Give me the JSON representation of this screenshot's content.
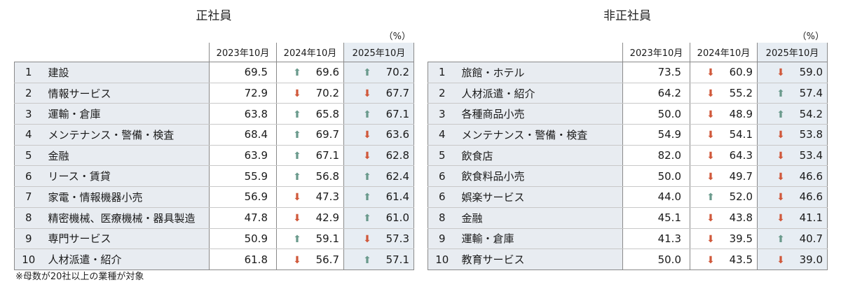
{
  "unit": "（%）",
  "headers": [
    "2023年10月",
    "2024年10月",
    "2025年10月"
  ],
  "note": "※母数が20社以上の業種が対象",
  "panels": [
    {
      "title": "正社員",
      "rows": [
        {
          "rank": "1",
          "name": "建設",
          "v2023": "69.5",
          "v2024": "69.6",
          "d2024": "up",
          "v2025": "70.2",
          "d2025": "up"
        },
        {
          "rank": "2",
          "name": "情報サービス",
          "v2023": "72.9",
          "v2024": "70.2",
          "d2024": "down",
          "v2025": "67.7",
          "d2025": "down"
        },
        {
          "rank": "3",
          "name": "運輸・倉庫",
          "v2023": "63.8",
          "v2024": "65.8",
          "d2024": "up",
          "v2025": "67.1",
          "d2025": "up"
        },
        {
          "rank": "4",
          "name": "メンテナンス・警備・検査",
          "v2023": "68.4",
          "v2024": "69.7",
          "d2024": "up",
          "v2025": "63.6",
          "d2025": "down"
        },
        {
          "rank": "5",
          "name": "金融",
          "v2023": "63.9",
          "v2024": "67.1",
          "d2024": "up",
          "v2025": "62.8",
          "d2025": "down"
        },
        {
          "rank": "6",
          "name": "リース・賃貸",
          "v2023": "55.9",
          "v2024": "56.8",
          "d2024": "up",
          "v2025": "62.4",
          "d2025": "up"
        },
        {
          "rank": "7",
          "name": "家電・情報機器小売",
          "v2023": "56.9",
          "v2024": "47.3",
          "d2024": "down",
          "v2025": "61.4",
          "d2025": "up"
        },
        {
          "rank": "8",
          "name": "精密機械、医療機械・器具製造",
          "v2023": "47.8",
          "v2024": "42.9",
          "d2024": "down",
          "v2025": "61.0",
          "d2025": "up"
        },
        {
          "rank": "9",
          "name": "専門サービス",
          "v2023": "50.9",
          "v2024": "59.1",
          "d2024": "up",
          "v2025": "57.3",
          "d2025": "down"
        },
        {
          "rank": "10",
          "name": "人材派遣・紹介",
          "v2023": "61.8",
          "v2024": "56.7",
          "d2024": "down",
          "v2025": "57.1",
          "d2025": "up"
        }
      ]
    },
    {
      "title": "非正社員",
      "rows": [
        {
          "rank": "1",
          "name": "旅館・ホテル",
          "v2023": "73.5",
          "v2024": "60.9",
          "d2024": "down",
          "v2025": "59.0",
          "d2025": "down"
        },
        {
          "rank": "2",
          "name": "人材派遣・紹介",
          "v2023": "64.2",
          "v2024": "55.2",
          "d2024": "down",
          "v2025": "57.4",
          "d2025": "up"
        },
        {
          "rank": "3",
          "name": "各種商品小売",
          "v2023": "50.0",
          "v2024": "48.9",
          "d2024": "down",
          "v2025": "54.2",
          "d2025": "up"
        },
        {
          "rank": "4",
          "name": "メンテナンス・警備・検査",
          "v2023": "54.9",
          "v2024": "54.1",
          "d2024": "down",
          "v2025": "53.8",
          "d2025": "down"
        },
        {
          "rank": "5",
          "name": "飲食店",
          "v2023": "82.0",
          "v2024": "64.3",
          "d2024": "down",
          "v2025": "53.4",
          "d2025": "down"
        },
        {
          "rank": "6",
          "name": "飲食料品小売",
          "v2023": "50.0",
          "v2024": "49.7",
          "d2024": "down",
          "v2025": "46.6",
          "d2025": "down"
        },
        {
          "rank": "6",
          "name": "娯楽サービス",
          "v2023": "44.0",
          "v2024": "52.0",
          "d2024": "up",
          "v2025": "46.6",
          "d2025": "down"
        },
        {
          "rank": "8",
          "name": "金融",
          "v2023": "45.1",
          "v2024": "43.8",
          "d2024": "down",
          "v2025": "41.1",
          "d2025": "down"
        },
        {
          "rank": "9",
          "name": "運輸・倉庫",
          "v2023": "41.3",
          "v2024": "39.5",
          "d2024": "down",
          "v2025": "40.7",
          "d2025": "up"
        },
        {
          "rank": "10",
          "name": "教育サービス",
          "v2023": "50.0",
          "v2024": "43.5",
          "d2024": "down",
          "v2025": "39.0",
          "d2025": "down"
        }
      ]
    }
  ]
}
